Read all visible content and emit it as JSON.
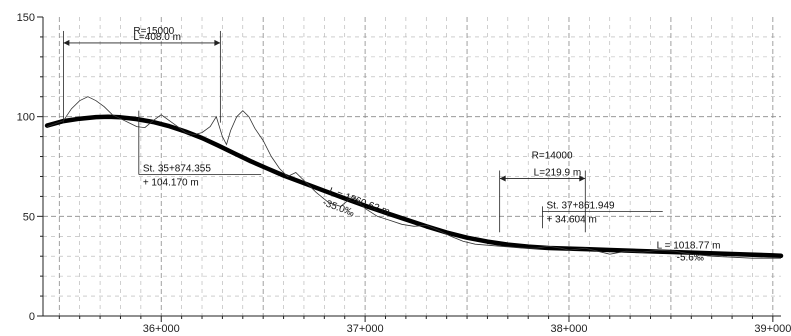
{
  "chart_data": {
    "type": "line",
    "title": "",
    "xlabel": "",
    "ylabel": "",
    "xlim": [
      35420,
      39040
    ],
    "ylim": [
      0,
      150
    ],
    "grid": true,
    "x_ticks": [
      {
        "value": 36000,
        "label": "36+000"
      },
      {
        "value": 37000,
        "label": "37+000"
      },
      {
        "value": 38000,
        "label": "38+000"
      },
      {
        "value": 39000,
        "label": "39+000"
      }
    ],
    "y_ticks": [
      {
        "value": 0,
        "label": "0"
      },
      {
        "value": 50,
        "label": "50"
      },
      {
        "value": 100,
        "label": "100"
      },
      {
        "value": 150,
        "label": "150"
      }
    ],
    "series": [
      {
        "role": "design-profile",
        "color": "#000000",
        "x": [
          35440,
          35520,
          35600,
          35680,
          35740,
          35800,
          35880,
          35960,
          36040,
          36120,
          36200,
          36280,
          36360,
          36440,
          36520,
          36600,
          36700,
          36800,
          36900,
          37000,
          37100,
          37200,
          37300,
          37400,
          37500,
          37600,
          37700,
          37800,
          37900,
          38000,
          38100,
          38200,
          38400,
          38600,
          38800,
          39000,
          39040
        ],
        "y": [
          95.5,
          97.8,
          99.0,
          99.8,
          100.0,
          99.7,
          98.8,
          97.3,
          95.2,
          92.5,
          89.3,
          85.5,
          81.5,
          77.6,
          74.0,
          70.5,
          66.6,
          62.8,
          59.0,
          55.3,
          51.8,
          48.4,
          45.0,
          41.9,
          39.3,
          37.3,
          35.8,
          34.8,
          34.1,
          33.8,
          33.5,
          33.1,
          32.4,
          31.8,
          31.1,
          30.4,
          30.2
        ]
      },
      {
        "role": "ground-profile",
        "color": "#333333",
        "x": [
          35440,
          35520,
          35560,
          35600,
          35640,
          35680,
          35720,
          35760,
          35800,
          35840,
          35880,
          35920,
          35960,
          36000,
          36040,
          36080,
          36120,
          36160,
          36200,
          36240,
          36270,
          36300,
          36320,
          36340,
          36370,
          36400,
          36430,
          36460,
          36500,
          36540,
          36580,
          36620,
          36660,
          36700,
          36760,
          36820,
          36880,
          36940,
          37000,
          37060,
          37120,
          37180,
          37240,
          37300,
          37360,
          37420,
          37480,
          37540,
          37600,
          37660,
          37720,
          37780,
          37840,
          37900,
          37960,
          38000,
          38040,
          38080,
          38120,
          38160,
          38200,
          38280,
          38360,
          38440,
          38520,
          38600,
          38700,
          38800,
          38900,
          39000,
          39040
        ],
        "y": [
          95.0,
          98.0,
          104.0,
          108.0,
          110.0,
          108.0,
          105.0,
          101.0,
          99.0,
          97.0,
          95.0,
          94.5,
          98.0,
          101.0,
          98.0,
          95.0,
          92.0,
          91.0,
          92.0,
          95.0,
          100.0,
          90.0,
          86.0,
          93.0,
          100.0,
          103.0,
          100.0,
          94.0,
          88.0,
          80.0,
          74.0,
          70.0,
          72.0,
          68.0,
          62.0,
          57.0,
          55.0,
          60.0,
          54.0,
          50.0,
          48.0,
          46.0,
          45.0,
          45.5,
          43.0,
          40.0,
          37.5,
          36.0,
          35.5,
          35.0,
          34.5,
          34.0,
          34.0,
          35.0,
          34.0,
          33.0,
          33.5,
          34.0,
          33.0,
          32.0,
          31.0,
          32.5,
          32.0,
          33.0,
          32.5,
          31.0,
          30.0,
          29.5,
          29.0,
          29.0,
          29.0
        ]
      }
    ],
    "annotations": {
      "curve1_radius": "R=15000",
      "curve1_length": "L=408.0 m",
      "curve1_start": 35520,
      "curve1_end": 36290,
      "curve1_dim_y": 137,
      "curve1_dim_top": 143,
      "curve1_dim_bottom": 97,
      "curve1_pivot": 35890,
      "curve1_pivot_top": 103,
      "pvi1_station": "St. 35+874.355",
      "pvi1_elevation": "+  104.170 m",
      "pvi1_label_x": 35890,
      "pvi1_label_y": 73,
      "pvi1_rule_end": 36490,
      "curve2_radius": "R=14000",
      "curve2_length": "L=219.9 m",
      "curve2_start": 37660,
      "curve2_end": 38080,
      "curve2_dim_y": 69,
      "curve2_dim_top": 73,
      "curve2_dim_bottom": 42,
      "curve2_pivot": 37870,
      "curve2_pivot_top": 55,
      "pvi2_station": "St. 37+861.949",
      "pvi2_elevation": "+  34.604 m",
      "pvi2_label_x": 37870,
      "pvi2_label_y": 54.5,
      "pvi2_rule_end": 38460,
      "grade1_length": "L = 1360.62 m",
      "grade1_slope": "-35.0‰",
      "grade1_x": 36820,
      "grade1_y": 61.5,
      "grade2_length": "L = 1018.77 m",
      "grade2_slope": "-5.6‰",
      "grade2_x": 38430,
      "grade2_y": 33.8
    }
  }
}
